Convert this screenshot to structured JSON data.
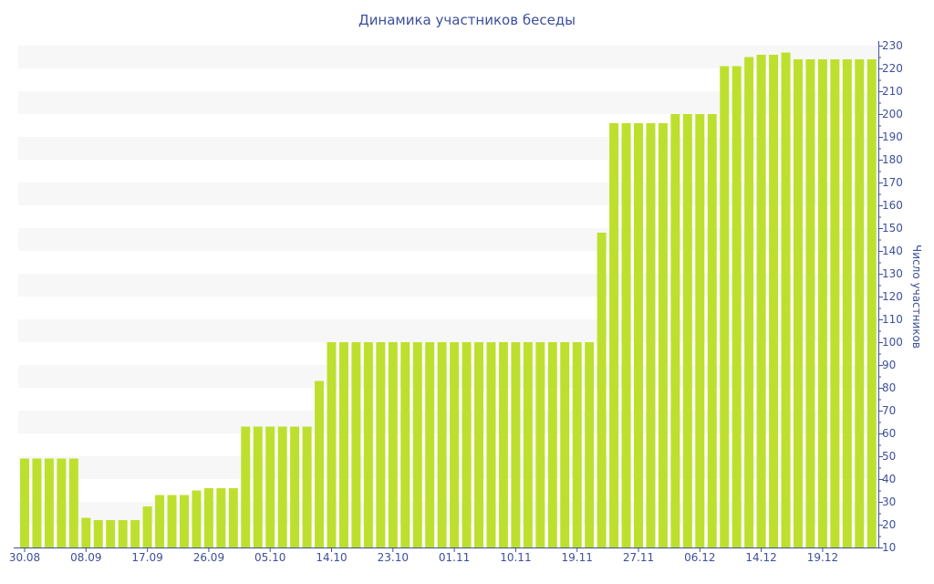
{
  "chart_data": {
    "type": "bar",
    "title": "Динамика участников беседы",
    "xlabel": "",
    "ylabel": "Число участников",
    "ylim": [
      10,
      230
    ],
    "ytick_step": 10,
    "y_axis_side": "right",
    "grid": "alternating horizontal bands",
    "bar_color": "#bde02e",
    "x_tick_labels": [
      "30.08",
      "08.09",
      "17.09",
      "26.09",
      "05.10",
      "14.10",
      "23.10",
      "01.11",
      "10.11",
      "19.11",
      "27.11",
      "06.12",
      "14.12",
      "19.12"
    ],
    "x_tick_every": 5,
    "values": [
      49,
      49,
      49,
      49,
      49,
      23,
      22,
      22,
      22,
      22,
      28,
      33,
      33,
      33,
      35,
      36,
      36,
      36,
      63,
      63,
      63,
      63,
      63,
      63,
      83,
      100,
      100,
      100,
      100,
      100,
      100,
      100,
      100,
      100,
      100,
      100,
      100,
      100,
      100,
      100,
      100,
      100,
      100,
      100,
      100,
      100,
      100,
      148,
      196,
      196,
      196,
      196,
      196,
      200,
      200,
      200,
      200,
      221,
      221,
      225,
      226,
      226,
      227,
      224,
      224,
      224,
      224,
      224,
      224,
      224
    ]
  }
}
